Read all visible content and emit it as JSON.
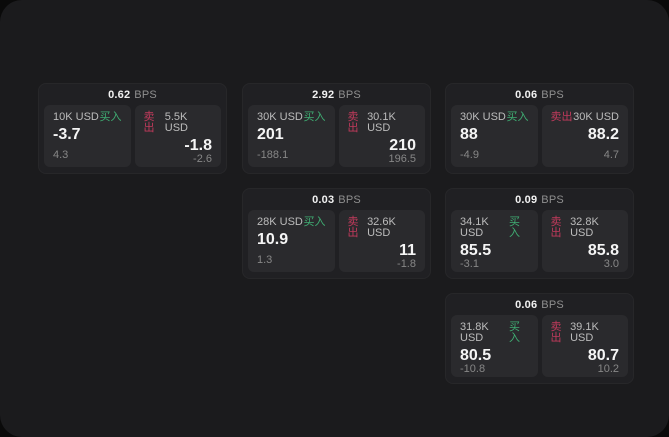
{
  "labels": {
    "bps_unit": "BPS",
    "buy": "买入",
    "sell": "卖出"
  },
  "colors": {
    "panel": "#1b1b1d",
    "card": "#202023",
    "pane": "#2a2a2d",
    "buy": "#3fae73",
    "sell": "#c13a5c"
  },
  "cards": [
    {
      "bps": "0.62",
      "buy": {
        "size": "10K USD",
        "price": "-3.7",
        "delta": "4.3"
      },
      "sell": {
        "size": "5.5K USD",
        "price": "-1.8",
        "delta": "-2.6"
      }
    },
    {
      "bps": "2.92",
      "buy": {
        "size": "30K USD",
        "price": "201",
        "delta": "-188.1"
      },
      "sell": {
        "size": "30.1K USD",
        "price": "210",
        "delta": "196.5"
      }
    },
    {
      "bps": "0.06",
      "buy": {
        "size": "30K USD",
        "price": "88",
        "delta": "-4.9"
      },
      "sell": {
        "size": "30K USD",
        "price": "88.2",
        "delta": "4.7"
      }
    },
    {
      "bps": "0.03",
      "buy": {
        "size": "28K USD",
        "price": "10.9",
        "delta": "1.3"
      },
      "sell": {
        "size": "32.6K USD",
        "price": "11",
        "delta": "-1.8"
      }
    },
    {
      "bps": "0.09",
      "buy": {
        "size": "34.1K USD",
        "price": "85.5",
        "delta": "-3.1"
      },
      "sell": {
        "size": "32.8K USD",
        "price": "85.8",
        "delta": "3.0"
      }
    },
    {
      "bps": "0.06",
      "buy": {
        "size": "31.8K USD",
        "price": "80.5",
        "delta": "-10.8"
      },
      "sell": {
        "size": "39.1K USD",
        "price": "80.7",
        "delta": "10.2"
      }
    }
  ]
}
